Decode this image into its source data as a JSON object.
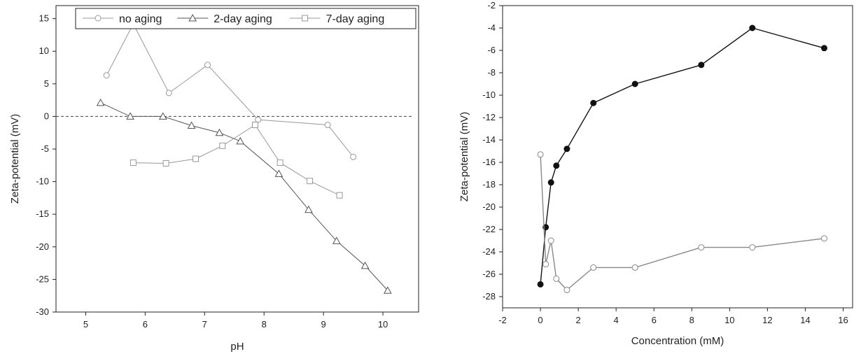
{
  "chart_data": [
    {
      "type": "line",
      "title": "",
      "xlabel": "pH",
      "ylabel": "Zeta-potential (mV)",
      "xlim": [
        4.5,
        10.6
      ],
      "ylim": [
        -30,
        17
      ],
      "xticks": [
        5,
        6,
        7,
        8,
        9,
        10
      ],
      "yticks": [
        -30,
        -25,
        -20,
        -15,
        -10,
        -5,
        0,
        5,
        10,
        15
      ],
      "reference_line": {
        "y": 0,
        "style": "dashed"
      },
      "legend_position": "top",
      "series": [
        {
          "name": "no aging",
          "marker": "circle",
          "color": "#999999",
          "x": [
            5.35,
            5.8,
            6.4,
            7.05,
            7.9,
            9.07,
            9.5
          ],
          "y": [
            6.3,
            14.2,
            3.6,
            7.9,
            -0.5,
            -1.3,
            -6.2
          ]
        },
        {
          "name": "2-day aging",
          "marker": "triangle",
          "color": "#555555",
          "x": [
            5.25,
            5.75,
            6.3,
            6.78,
            7.25,
            7.6,
            8.25,
            8.75,
            9.22,
            9.7,
            10.08
          ],
          "y": [
            2.1,
            0.0,
            0.0,
            -1.4,
            -2.5,
            -3.8,
            -8.8,
            -14.3,
            -19.1,
            -22.9,
            -26.7
          ]
        },
        {
          "name": "7-day aging",
          "marker": "square",
          "color": "#999999",
          "x": [
            5.8,
            6.35,
            6.85,
            7.3,
            7.85,
            8.27,
            8.77,
            9.27
          ],
          "y": [
            -7.1,
            -7.2,
            -6.5,
            -4.5,
            -1.3,
            -7.1,
            -9.9,
            -12.1
          ]
        }
      ]
    },
    {
      "type": "line",
      "title": "",
      "xlabel": "Concentration (mM)",
      "ylabel": "Zeta-potential (mV)",
      "xlim": [
        -2,
        16.5
      ],
      "ylim": [
        -29,
        -2
      ],
      "xticks": [
        -2,
        0,
        2,
        4,
        6,
        8,
        10,
        12,
        14,
        16
      ],
      "yticks": [
        -28,
        -26,
        -24,
        -22,
        -20,
        -18,
        -16,
        -14,
        -12,
        -10,
        -8,
        -6,
        -4,
        -2
      ],
      "series": [
        {
          "marker": "filled-circle",
          "color": "#111111",
          "x": [
            0,
            0.28,
            0.56,
            0.84,
            1.4,
            2.8,
            5.0,
            8.5,
            11.2,
            15.0
          ],
          "y": [
            -26.9,
            -21.8,
            -17.8,
            -16.3,
            -14.8,
            -10.7,
            -9.0,
            -7.3,
            -4.0,
            -5.8
          ]
        },
        {
          "marker": "open-circle",
          "color": "#888888",
          "x": [
            0,
            0.28,
            0.56,
            0.84,
            1.4,
            2.8,
            5.0,
            8.5,
            11.2,
            15.0
          ],
          "y": [
            -15.3,
            -25.1,
            -23.0,
            -26.4,
            -27.4,
            -25.4,
            -25.4,
            -23.6,
            -23.6,
            -22.8
          ]
        }
      ]
    }
  ]
}
